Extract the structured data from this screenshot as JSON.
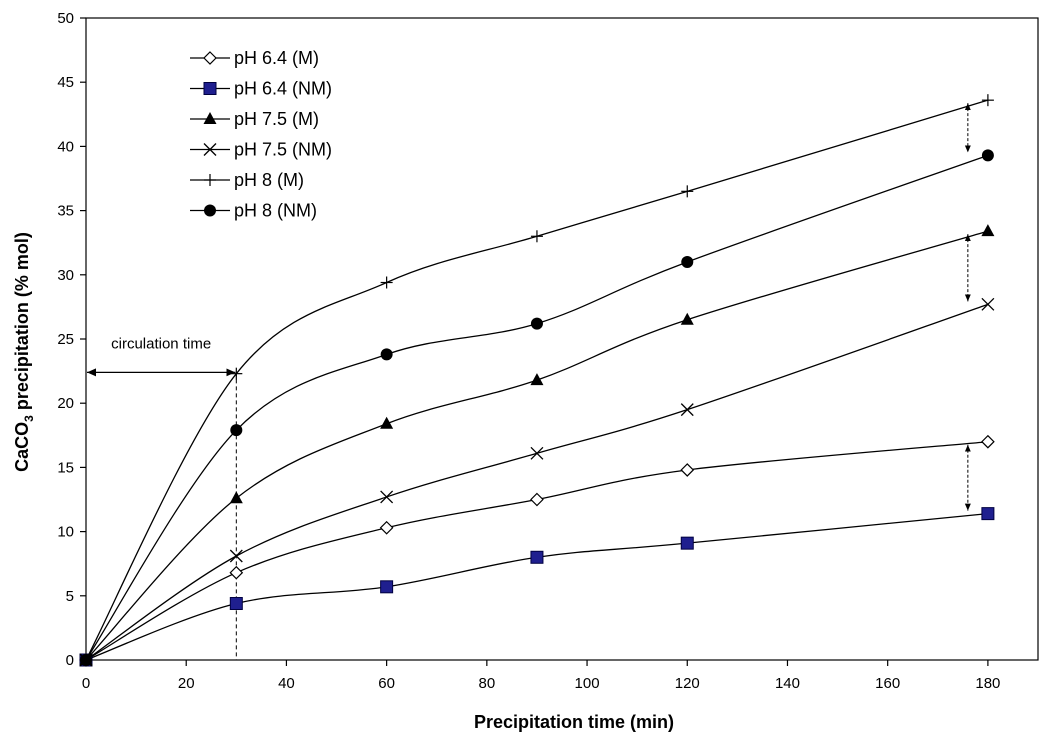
{
  "chart_data": {
    "type": "line",
    "title": "",
    "xlabel": "Precipitation time (min)",
    "ylabel": {
      "pre": "CaCO",
      "sub": "3",
      "post": " precipitation (% mol)"
    },
    "xlim": [
      0,
      190
    ],
    "ylim": [
      0,
      50
    ],
    "xticks": [
      0,
      20,
      40,
      60,
      80,
      100,
      120,
      140,
      160,
      180
    ],
    "yticks": [
      0,
      5,
      10,
      15,
      20,
      25,
      30,
      35,
      40,
      45,
      50
    ],
    "grid": false,
    "legend_position": "top-left",
    "x": [
      0,
      30,
      60,
      90,
      120,
      180
    ],
    "series": [
      {
        "name": "pH 6.4 (M)",
        "marker": "diamond-open",
        "values": [
          0,
          6.8,
          10.3,
          12.5,
          14.8,
          17.0
        ]
      },
      {
        "name": "pH 6.4 (NM)",
        "marker": "square-filled",
        "values": [
          0,
          4.4,
          5.7,
          8.0,
          9.1,
          11.4
        ]
      },
      {
        "name": "pH 7.5 (M)",
        "marker": "triangle-filled",
        "values": [
          0,
          12.6,
          18.4,
          21.8,
          26.5,
          33.4
        ]
      },
      {
        "name": "pH 7.5 (NM)",
        "marker": "x",
        "values": [
          0,
          8.1,
          12.7,
          16.1,
          19.5,
          27.7
        ]
      },
      {
        "name": "pH 8 (M)",
        "marker": "plus",
        "values": [
          0,
          22.3,
          29.4,
          33.0,
          36.5,
          43.6
        ]
      },
      {
        "name": "pH 8 (NM)",
        "marker": "circle-filled",
        "values": [
          0,
          17.9,
          23.8,
          26.2,
          31.0,
          39.3
        ]
      }
    ],
    "annotations": {
      "circulation_label": "circulation time",
      "circulation_span": [
        0,
        30
      ],
      "circulation_y": 22.4,
      "dashed_line_x": 30,
      "dashed_line_y_top": 22.4,
      "difference_arrows_x": 176,
      "difference_arrows": [
        {
          "from": 17.0,
          "to": 11.4
        },
        {
          "from": 33.4,
          "to": 27.7
        },
        {
          "from": 43.6,
          "to": 39.3
        }
      ]
    },
    "colors": {
      "line": "#000000",
      "square_fill": "#1f1f8f",
      "square_stroke": "#000040"
    }
  }
}
